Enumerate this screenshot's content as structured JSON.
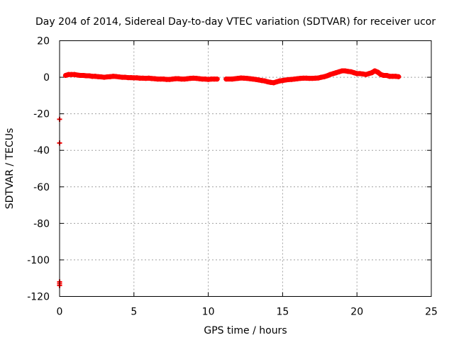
{
  "chart_data": {
    "type": "scatter",
    "title": "Day 204 of 2014, Sidereal Day-to-day VTEC variation (SDTVAR) for receiver ucor",
    "xlabel": "GPS time / hours",
    "ylabel": "SDTVAR / TECUs",
    "xlim": [
      0,
      25
    ],
    "ylim": [
      -120,
      20
    ],
    "xticks": [
      0,
      5,
      10,
      15,
      20,
      25
    ],
    "yticks": [
      20,
      0,
      -20,
      -40,
      -60,
      -80,
      -100,
      -120
    ],
    "grid": true,
    "legend": "none",
    "marker": "+",
    "color": "#ff0000",
    "series": [
      {
        "name": "SDTVAR",
        "x": [
          0.0,
          0.0,
          0.0,
          0.0,
          0.0,
          0.4,
          0.6,
          0.8,
          1.0,
          1.2,
          1.4,
          1.6,
          1.8,
          2.0,
          2.2,
          2.4,
          2.6,
          2.8,
          3.0,
          3.2,
          3.4,
          3.6,
          3.8,
          4.0,
          4.2,
          4.4,
          4.6,
          4.8,
          5.0,
          5.2,
          5.4,
          5.6,
          5.8,
          6.0,
          6.2,
          6.4,
          6.6,
          6.8,
          7.0,
          7.2,
          7.4,
          7.6,
          7.8,
          8.0,
          8.2,
          8.4,
          8.6,
          8.8,
          9.0,
          9.2,
          9.4,
          9.6,
          9.8,
          10.0,
          10.2,
          10.4,
          10.6,
          11.2,
          11.6,
          12.0,
          12.2,
          12.4,
          12.6,
          12.8,
          13.0,
          13.2,
          13.4,
          13.6,
          13.8,
          14.0,
          14.2,
          14.4,
          14.6,
          14.8,
          15.0,
          15.2,
          15.4,
          15.6,
          15.8,
          16.0,
          16.2,
          16.4,
          16.6,
          16.8,
          17.0,
          17.2,
          17.4,
          17.6,
          17.8,
          18.0,
          18.2,
          18.4,
          18.6,
          18.8,
          19.0,
          19.2,
          19.4,
          19.6,
          19.8,
          20.0,
          20.2,
          20.4,
          20.6,
          20.8,
          21.0,
          21.2,
          21.4,
          21.6,
          21.8,
          22.0,
          22.2,
          22.4,
          22.6,
          22.8
        ],
        "y": [
          -23,
          -36,
          -112,
          -113,
          -114,
          1.0,
          1.5,
          1.5,
          1.5,
          1.2,
          1.0,
          1.0,
          0.8,
          0.8,
          0.5,
          0.5,
          0.3,
          0.2,
          0.0,
          0.2,
          0.3,
          0.5,
          0.4,
          0.2,
          0.0,
          0.0,
          -0.2,
          -0.2,
          -0.3,
          -0.3,
          -0.5,
          -0.5,
          -0.6,
          -0.5,
          -0.7,
          -0.8,
          -1.0,
          -1.0,
          -1.0,
          -1.2,
          -1.2,
          -1.0,
          -0.8,
          -0.8,
          -1.0,
          -1.0,
          -0.8,
          -0.6,
          -0.5,
          -0.6,
          -0.8,
          -1.0,
          -1.0,
          -1.2,
          -1.0,
          -1.0,
          -1.0,
          -1.0,
          -1.0,
          -0.6,
          -0.4,
          -0.5,
          -0.6,
          -0.8,
          -1.0,
          -1.2,
          -1.5,
          -1.8,
          -2.0,
          -2.5,
          -2.8,
          -3.0,
          -2.5,
          -2.0,
          -1.8,
          -1.5,
          -1.3,
          -1.2,
          -1.0,
          -0.8,
          -0.6,
          -0.5,
          -0.5,
          -0.6,
          -0.6,
          -0.5,
          -0.4,
          0.0,
          0.3,
          0.8,
          1.5,
          2.0,
          2.5,
          3.0,
          3.5,
          3.5,
          3.2,
          3.0,
          2.5,
          2.0,
          2.0,
          1.8,
          1.5,
          2.0,
          2.5,
          3.5,
          2.8,
          1.5,
          1.0,
          1.0,
          0.5,
          0.5,
          0.5,
          0.3
        ]
      }
    ]
  }
}
